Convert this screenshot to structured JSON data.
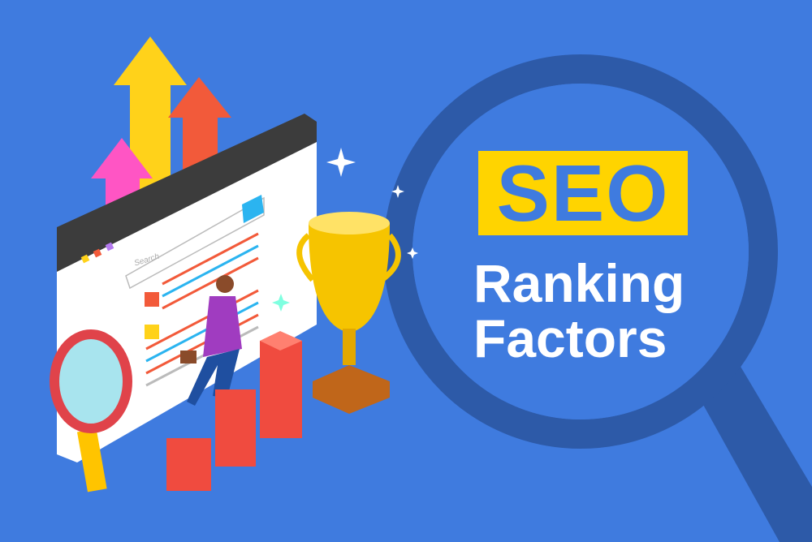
{
  "headline": {
    "badge": "SEO",
    "line1": "Ranking",
    "line2": "Factors"
  },
  "browser": {
    "search_placeholder": "Search",
    "search_icon": "magnifier-icon"
  },
  "colors": {
    "background": "#3f7bdf",
    "badge": "#ffd400",
    "lens_ring": "#2d5aa8",
    "bars": "#f04b3f",
    "trophy": "#f6c400"
  }
}
